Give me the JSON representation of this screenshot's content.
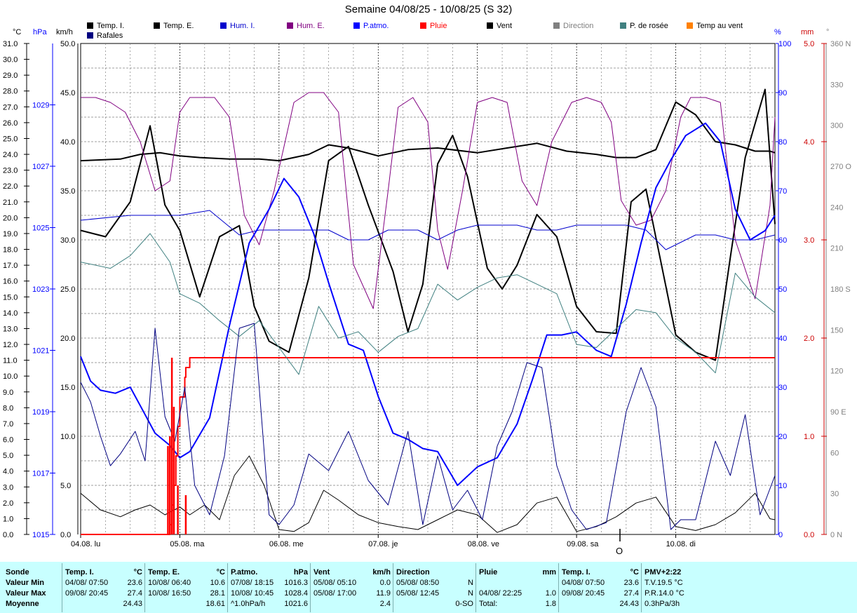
{
  "title": "Semaine 04/08/25 - 10/08/25 (S 32)",
  "legend": [
    {
      "label": "Temp. I.",
      "color": "#000000",
      "text_color": "#000000"
    },
    {
      "label": "Temp. E.",
      "color": "#000000",
      "text_color": "#000000"
    },
    {
      "label": "Hum. I.",
      "color": "#0000cc",
      "text_color": "#0000cc"
    },
    {
      "label": "Hum. E.",
      "color": "#800080",
      "text_color": "#800080"
    },
    {
      "label": "P.atmo.",
      "color": "#0000ff",
      "text_color": "#0000ff"
    },
    {
      "label": "Pluie",
      "color": "#ff0000",
      "text_color": "#ff0000"
    },
    {
      "label": "Vent",
      "color": "#000000",
      "text_color": "#000000"
    },
    {
      "label": "Direction",
      "color": "#808080",
      "text_color": "#808080"
    },
    {
      "label": "P. de rosée",
      "color": "#408080",
      "text_color": "#000000"
    },
    {
      "label": "Temp au vent",
      "color": "#ff8000",
      "text_color": "#000000"
    },
    {
      "label": "Rafales",
      "color": "#000080",
      "text_color": "#000000"
    }
  ],
  "units": {
    "temp": "°C",
    "press": "hPa",
    "wind": "km/h",
    "hum": "%",
    "rain": "mm",
    "dir": "°"
  },
  "o_label": "O",
  "footer": {
    "labels": [
      "Sonde",
      "Valeur Min",
      "Valeur Max",
      "Moyenne"
    ],
    "columns": [
      {
        "name": "Temp. I.",
        "unit": "°C",
        "rows": [
          [
            "04/08/ 07:50",
            "23.6"
          ],
          [
            "09/08/ 20:45",
            "27.4"
          ],
          [
            "",
            "24.43"
          ]
        ]
      },
      {
        "name": "Temp. E.",
        "unit": "°C",
        "rows": [
          [
            "10/08/ 06:40",
            "10.6"
          ],
          [
            "10/08/ 16:50",
            "28.1"
          ],
          [
            "",
            "18.61"
          ]
        ]
      },
      {
        "name": "P.atmo.",
        "unit": "hPa",
        "rows": [
          [
            "07/08/ 18:15",
            "1016.3"
          ],
          [
            "10/08/ 10:45",
            "1028.4"
          ],
          [
            "^1.0hPa/h",
            "1021.6"
          ]
        ]
      },
      {
        "name": "Vent",
        "unit": "km/h",
        "rows": [
          [
            "05/08/ 05:10",
            "0.0"
          ],
          [
            "05/08/ 17:00",
            "11.9"
          ],
          [
            "",
            "2.4"
          ]
        ]
      },
      {
        "name": "Direction",
        "unit": "",
        "rows": [
          [
            "05/08/ 08:50",
            "N"
          ],
          [
            "05/08/ 12:45",
            "N"
          ],
          [
            "",
            "0-SO"
          ]
        ]
      },
      {
        "name": "Pluie",
        "unit": "mm",
        "rows": [
          [
            "",
            ""
          ],
          [
            "04/08/ 22:25",
            "1.0"
          ],
          [
            "Total:",
            "1.8"
          ]
        ]
      },
      {
        "name": "Temp. I.",
        "unit": "°C",
        "rows": [
          [
            "04/08/ 07:50",
            "23.6"
          ],
          [
            "09/08/ 20:45",
            "27.4"
          ],
          [
            "",
            "24.43"
          ]
        ]
      },
      {
        "name": "PMV+2:22",
        "unit": "",
        "rows": [
          [
            "T.V.19.5 °C",
            ""
          ],
          [
            "P.R.14.0 °C",
            ""
          ],
          [
            "0.3hPa/3h",
            ""
          ]
        ]
      }
    ]
  },
  "chart_data": {
    "type": "line",
    "title": "Semaine 04/08/25 - 10/08/25 (S 32)",
    "x_unit": "days since 04.08 00:00",
    "xlim": [
      0,
      7
    ],
    "x_ticks": [
      "04.08. lu",
      "05.08. ma",
      "06.08. me",
      "07.08. je",
      "08.08. ve",
      "09.08. sa",
      "10.08. di"
    ],
    "axes": {
      "temp_c": {
        "range": [
          0,
          31
        ],
        "ticks": [
          0,
          1,
          2,
          3,
          4,
          5,
          6,
          7,
          8,
          9,
          10,
          11,
          12,
          13,
          14,
          15,
          16,
          17,
          18,
          19,
          20,
          21,
          22,
          23,
          24,
          25,
          26,
          27,
          28,
          29,
          30,
          31
        ],
        "color": "#000000"
      },
      "press_hpa": {
        "range": [
          1015,
          1031
        ],
        "ticks": [
          1015,
          1017,
          1019,
          1021,
          1023,
          1025,
          1027,
          1029
        ],
        "color": "#0000ff"
      },
      "wind_kmh": {
        "range": [
          0,
          50
        ],
        "ticks": [
          0,
          5,
          10,
          15,
          20,
          25,
          30,
          35,
          40,
          45,
          50
        ],
        "color": "#000000"
      },
      "hum_pct": {
        "range": [
          0,
          100
        ],
        "ticks": [
          0,
          10,
          20,
          30,
          40,
          50,
          60,
          70,
          80,
          90,
          100
        ],
        "color": "#0000ff"
      },
      "rain_mm": {
        "range": [
          0,
          5
        ],
        "ticks": [
          0,
          1,
          2,
          3,
          4,
          5
        ],
        "color": "#cc0000"
      },
      "dir_deg": {
        "range": [
          0,
          360
        ],
        "ticks": [
          0,
          30,
          60,
          90,
          120,
          150,
          180,
          210,
          240,
          270,
          300,
          330,
          360
        ],
        "tick_labels": [
          "0 N",
          "30",
          "60",
          "90 E",
          "120",
          "150",
          "180 S",
          "210",
          "240",
          "270 O",
          "300",
          "330",
          "360 N"
        ],
        "color": "#808080"
      }
    },
    "grid": true,
    "series": [
      {
        "name": "Temp. I.",
        "axis": "temp_c",
        "color": "#000000",
        "width": 2,
        "x": [
          0,
          0.4,
          0.6,
          0.8,
          1.0,
          1.2,
          1.5,
          1.8,
          2.0,
          2.3,
          2.5,
          2.7,
          3.0,
          3.3,
          3.6,
          4.0,
          4.3,
          4.6,
          4.9,
          5.2,
          5.4,
          5.6,
          5.8,
          6.0,
          6.2,
          6.4,
          6.6,
          6.8,
          6.95,
          7.0
        ],
        "y": [
          23.6,
          23.7,
          24.0,
          24.1,
          23.9,
          23.8,
          23.7,
          23.7,
          23.6,
          24.0,
          24.6,
          24.4,
          23.9,
          24.3,
          24.4,
          24.1,
          24.4,
          24.7,
          24.2,
          24.0,
          23.8,
          23.8,
          24.3,
          27.3,
          26.5,
          24.8,
          24.6,
          24.2,
          24.2,
          24.1
        ]
      },
      {
        "name": "Temp. E.",
        "axis": "temp_c",
        "color": "#000000",
        "width": 2,
        "x": [
          0,
          0.25,
          0.5,
          0.7,
          0.85,
          1.0,
          1.2,
          1.4,
          1.6,
          1.75,
          1.9,
          2.1,
          2.3,
          2.5,
          2.7,
          2.9,
          3.15,
          3.3,
          3.45,
          3.6,
          3.75,
          3.9,
          4.1,
          4.25,
          4.4,
          4.6,
          4.8,
          5.0,
          5.2,
          5.4,
          5.55,
          5.7,
          5.85,
          6.0,
          6.2,
          6.4,
          6.55,
          6.7,
          6.9,
          7.0
        ],
        "y": [
          19.2,
          18.8,
          21.0,
          25.8,
          20.8,
          19.2,
          15.0,
          18.8,
          19.5,
          14.4,
          12.2,
          11.5,
          16.2,
          23.6,
          24.5,
          20.8,
          16.6,
          12.8,
          15.8,
          23.4,
          25.2,
          22.6,
          16.8,
          15.5,
          17.0,
          20.2,
          18.8,
          14.4,
          12.8,
          12.7,
          21.0,
          21.8,
          17.2,
          12.6,
          11.5,
          11.0,
          17.5,
          23.8,
          28.1,
          19.6
        ]
      },
      {
        "name": "Hum. I.",
        "axis": "hum_pct",
        "color": "#0000cc",
        "width": 1,
        "x": [
          0,
          0.5,
          1.0,
          1.3,
          1.6,
          1.8,
          2.0,
          2.3,
          2.5,
          2.7,
          2.9,
          3.1,
          3.4,
          3.6,
          3.8,
          4.0,
          4.2,
          4.4,
          4.6,
          4.8,
          5.0,
          5.3,
          5.5,
          5.7,
          5.9,
          6.0,
          6.2,
          6.4,
          6.6,
          6.8,
          7.0
        ],
        "y": [
          64,
          65,
          65,
          66,
          61,
          62,
          62,
          62,
          62,
          60,
          60,
          62,
          62,
          60,
          62,
          63,
          63,
          63,
          62,
          62,
          63,
          63,
          63,
          62,
          58,
          59,
          61,
          61,
          60,
          60,
          61
        ]
      },
      {
        "name": "Hum. E.",
        "axis": "hum_pct",
        "color": "#800080",
        "width": 1,
        "x": [
          0,
          0.15,
          0.3,
          0.45,
          0.6,
          0.75,
          0.9,
          1.0,
          1.1,
          1.2,
          1.35,
          1.5,
          1.65,
          1.8,
          1.95,
          2.15,
          2.3,
          2.45,
          2.6,
          2.75,
          2.95,
          3.1,
          3.2,
          3.35,
          3.5,
          3.6,
          3.7,
          3.85,
          4.0,
          4.15,
          4.3,
          4.45,
          4.6,
          4.75,
          4.95,
          5.1,
          5.25,
          5.35,
          5.45,
          5.6,
          5.75,
          5.9,
          6.05,
          6.15,
          6.3,
          6.45,
          6.6,
          6.8,
          6.95,
          7.0
        ],
        "y": [
          89,
          89,
          88,
          86,
          80,
          70,
          72,
          86,
          89,
          89,
          89,
          85,
          65,
          59,
          70,
          88,
          90,
          90,
          86,
          55,
          46,
          70,
          87,
          89,
          84,
          62,
          54,
          70,
          88,
          89,
          88,
          72,
          67,
          80,
          88,
          89,
          88,
          84,
          68,
          63,
          64,
          70,
          85,
          89,
          89,
          88,
          60,
          48,
          67,
          85
        ]
      },
      {
        "name": "P.atmo.",
        "axis": "press_hpa",
        "color": "#0000ff",
        "width": 2,
        "x": [
          0,
          0.1,
          0.2,
          0.35,
          0.5,
          0.6,
          0.75,
          0.9,
          1.0,
          1.1,
          1.3,
          1.5,
          1.7,
          1.9,
          2.05,
          2.2,
          2.35,
          2.5,
          2.7,
          2.85,
          3.0,
          3.15,
          3.3,
          3.45,
          3.6,
          3.8,
          4.0,
          4.2,
          4.4,
          4.55,
          4.7,
          4.85,
          5.0,
          5.2,
          5.35,
          5.5,
          5.65,
          5.8,
          5.95,
          6.1,
          6.3,
          6.45,
          6.6,
          6.75,
          6.9,
          7.0
        ],
        "y": [
          1020.8,
          1020.0,
          1019.7,
          1019.6,
          1019.8,
          1019.2,
          1018.3,
          1017.9,
          1017.5,
          1017.7,
          1018.8,
          1021.8,
          1024.5,
          1025.6,
          1026.6,
          1026.0,
          1024.8,
          1023.2,
          1021.2,
          1021.0,
          1019.5,
          1018.3,
          1018.1,
          1017.8,
          1017.7,
          1016.6,
          1017.2,
          1017.5,
          1018.6,
          1020.0,
          1021.5,
          1021.5,
          1021.6,
          1021.0,
          1020.8,
          1022.5,
          1024.5,
          1026.3,
          1027.2,
          1028.0,
          1028.4,
          1027.8,
          1025.6,
          1024.6,
          1024.9,
          1025.4
        ]
      },
      {
        "name": "Pluie",
        "axis": "rain_mm",
        "color": "#ff0000",
        "width": 2,
        "x": [
          0,
          0.88,
          0.9,
          0.92,
          0.94,
          0.96,
          0.98,
          1.0,
          1.03,
          1.05,
          1.06,
          1.1,
          1.15,
          7.0
        ],
        "y": [
          0,
          0,
          0.1,
          0.3,
          0.5,
          0.8,
          1.1,
          1.4,
          1.4,
          1.6,
          1.7,
          1.8,
          1.8,
          1.8
        ]
      },
      {
        "name": "P. de rosée",
        "axis": "temp_c",
        "color": "#408080",
        "width": 1,
        "x": [
          0,
          0.3,
          0.5,
          0.7,
          0.9,
          1.0,
          1.2,
          1.4,
          1.6,
          1.8,
          2.0,
          2.2,
          2.4,
          2.6,
          2.8,
          3.0,
          3.2,
          3.4,
          3.6,
          3.8,
          4.0,
          4.2,
          4.4,
          4.6,
          4.8,
          5.0,
          5.2,
          5.4,
          5.6,
          5.8,
          6.0,
          6.2,
          6.4,
          6.6,
          6.8,
          7.0
        ],
        "y": [
          17.2,
          16.8,
          17.6,
          19.0,
          17.2,
          15.2,
          14.6,
          13.5,
          12.5,
          13.5,
          11.8,
          10.1,
          14.4,
          12.4,
          12.8,
          11.5,
          12.5,
          13.0,
          15.8,
          14.8,
          15.6,
          16.2,
          16.4,
          15.8,
          15.2,
          12.0,
          11.8,
          13.0,
          14.2,
          14.0,
          12.4,
          11.5,
          10.2,
          16.5,
          15.0,
          14.0
        ]
      },
      {
        "name": "Vent",
        "axis": "wind_kmh",
        "color": "#000000",
        "width": 1,
        "x": [
          0,
          0.2,
          0.4,
          0.55,
          0.7,
          0.85,
          1.0,
          1.1,
          1.25,
          1.4,
          1.55,
          1.7,
          1.85,
          2.0,
          2.15,
          2.3,
          2.45,
          2.6,
          2.8,
          3.0,
          3.2,
          3.4,
          3.6,
          3.8,
          4.0,
          4.2,
          4.4,
          4.6,
          4.8,
          5.0,
          5.2,
          5.4,
          5.6,
          5.8,
          6.0,
          6.2,
          6.4,
          6.6,
          6.8,
          6.95,
          7.0
        ],
        "y": [
          4.2,
          2.5,
          1.8,
          2.5,
          3.0,
          2.0,
          2.8,
          2.0,
          3.0,
          1.5,
          6.0,
          8.0,
          5.0,
          0.5,
          0.3,
          1.2,
          4.5,
          3.5,
          2.0,
          1.2,
          0.8,
          0.5,
          1.5,
          2.5,
          2.0,
          0.2,
          1.0,
          3.2,
          3.8,
          0.3,
          0.8,
          1.8,
          3.2,
          3.8,
          0.8,
          0.4,
          1.0,
          2.2,
          4.2,
          1.6,
          1.5
        ]
      },
      {
        "name": "Rafales",
        "axis": "wind_kmh",
        "color": "#000080",
        "width": 1,
        "x": [
          0,
          0.1,
          0.2,
          0.3,
          0.4,
          0.55,
          0.65,
          0.75,
          0.85,
          0.95,
          1.05,
          1.15,
          1.3,
          1.45,
          1.6,
          1.75,
          1.9,
          2.0,
          2.15,
          2.3,
          2.5,
          2.7,
          2.9,
          3.1,
          3.3,
          3.45,
          3.6,
          3.75,
          3.9,
          4.05,
          4.2,
          4.35,
          4.5,
          4.65,
          4.8,
          4.95,
          5.1,
          5.3,
          5.5,
          5.65,
          5.8,
          5.95,
          6.05,
          6.2,
          6.4,
          6.55,
          6.7,
          6.85,
          7.0
        ],
        "y": [
          15.5,
          13.5,
          10.0,
          7.0,
          8.2,
          10.5,
          7.5,
          21.0,
          12.0,
          9.5,
          15.0,
          5.0,
          2.0,
          8.0,
          21.0,
          21.5,
          2.0,
          1.0,
          3.0,
          8.2,
          6.5,
          10.5,
          5.5,
          3.0,
          10.5,
          1.0,
          8.0,
          2.5,
          4.5,
          1.5,
          9.0,
          12.5,
          17.5,
          17.0,
          7.0,
          2.5,
          0.5,
          1.2,
          12.5,
          17.0,
          13.0,
          0.5,
          1.5,
          1.5,
          9.5,
          6.0,
          12.2,
          2.0,
          6.0
        ]
      }
    ]
  }
}
